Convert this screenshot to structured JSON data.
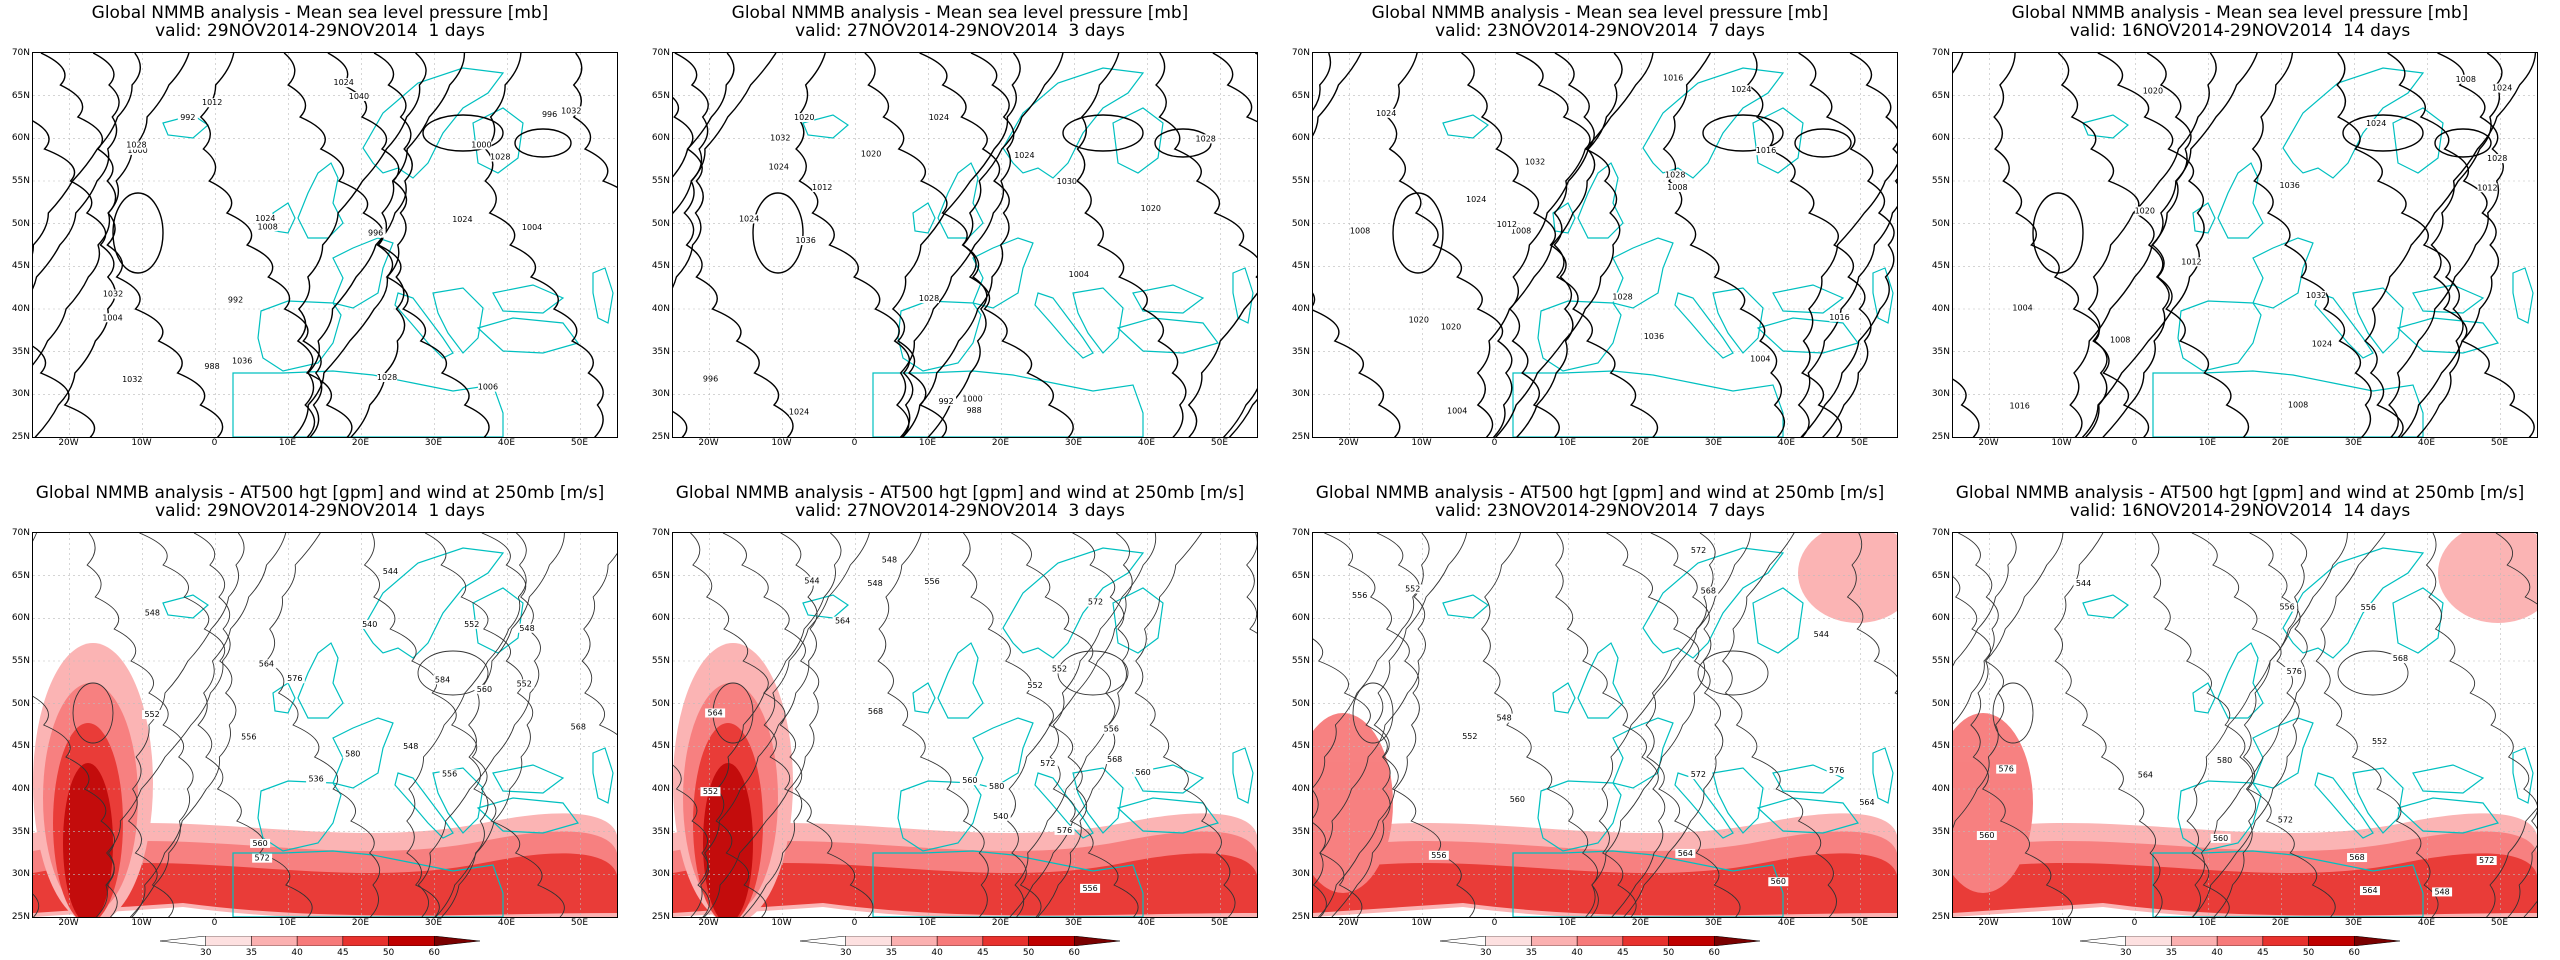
{
  "panels": [
    {
      "title": "Global NMMB analysis - Mean sea level pressure [mb]",
      "valid": "valid: 29NOV2014-29NOV2014  1 days",
      "kind": "mslp",
      "isolines": [
        "992",
        "1004",
        "1008",
        "1006",
        "1004",
        "1000",
        "996",
        "988",
        "992",
        "996",
        "1000",
        "1012",
        "1028",
        "1032",
        "1036",
        "1040",
        "1032",
        "1028",
        "1024",
        "1028",
        "1032",
        "1024",
        "1024"
      ]
    },
    {
      "title": "Global NMMB analysis - Mean sea level pressure [mb]",
      "valid": "valid: 27NOV2014-29NOV2014  3 days",
      "kind": "mslp",
      "isolines": [
        "988",
        "992",
        "996",
        "1000",
        "1004",
        "1012",
        "1024",
        "1024",
        "1028",
        "1032",
        "1036",
        "1028",
        "1024",
        "1024",
        "1024",
        "1020",
        "1020",
        "1020",
        "1030"
      ]
    },
    {
      "title": "Global NMMB analysis - Mean sea level pressure [mb]",
      "valid": "valid: 23NOV2014-29NOV2014  7 days",
      "kind": "mslp",
      "isolines": [
        "1004",
        "1008",
        "1008",
        "1004",
        "1008",
        "1012",
        "1016",
        "1024",
        "1028",
        "1032",
        "1036",
        "1028",
        "1024",
        "1020",
        "1016",
        "1020",
        "1024",
        "1016"
      ]
    },
    {
      "title": "Global NMMB analysis - Mean sea level pressure [mb]",
      "valid": "valid: 16NOV2014-29NOV2014  14 days",
      "kind": "mslp",
      "isolines": [
        "1004",
        "1008",
        "1008",
        "1008",
        "1012",
        "1012",
        "1024",
        "1028",
        "1032",
        "1036",
        "1024",
        "1020",
        "1016",
        "1020",
        "1024"
      ]
    },
    {
      "title": "Global NMMB analysis - AT500 hgt [gpm] and wind at 250mb [m/s]",
      "valid": "valid: 29NOV2014-29NOV2014  1 days",
      "kind": "z500",
      "isolines": [
        "556",
        "552",
        "548",
        "544",
        "540",
        "536",
        "548",
        "552",
        "556",
        "560",
        "564",
        "568",
        "572",
        "576",
        "580",
        "584",
        "560",
        "552",
        "548"
      ]
    },
    {
      "title": "Global NMMB analysis - AT500 hgt [gpm] and wind at 250mb [m/s]",
      "valid": "valid: 27NOV2014-29NOV2014  3 days",
      "kind": "z500",
      "isolines": [
        "552",
        "556",
        "560",
        "548",
        "544",
        "540",
        "552",
        "556",
        "560",
        "564",
        "568",
        "572",
        "576",
        "580",
        "548",
        "552",
        "556",
        "564",
        "568",
        "572"
      ]
    },
    {
      "title": "Global NMMB analysis - AT500 hgt [gpm] and wind at 250mb [m/s]",
      "valid": "valid: 23NOV2014-29NOV2014  7 days",
      "kind": "z500",
      "isolines": [
        "544",
        "548",
        "552",
        "556",
        "560",
        "564",
        "568",
        "572",
        "576",
        "552",
        "556",
        "560",
        "564",
        "572"
      ]
    },
    {
      "title": "Global NMMB analysis - AT500 hgt [gpm] and wind at 250mb [m/s]",
      "valid": "valid: 16NOV2014-29NOV2014  14 days",
      "kind": "z500",
      "isolines": [
        "544",
        "548",
        "552",
        "556",
        "560",
        "564",
        "568",
        "572",
        "576",
        "580",
        "556",
        "560",
        "564",
        "568",
        "572",
        "576"
      ]
    }
  ],
  "axes": {
    "lat_labels": [
      "70N",
      "65N",
      "60N",
      "55N",
      "50N",
      "45N",
      "40N",
      "35N",
      "30N",
      "25N"
    ],
    "lon_labels": [
      "20W",
      "10W",
      "0",
      "10E",
      "20E",
      "30E",
      "40E",
      "50E"
    ]
  },
  "colorbar": {
    "labels": [
      "30",
      "35",
      "40",
      "45",
      "50",
      "60"
    ],
    "colors": [
      "#ffffff",
      "#fde0e0",
      "#fbb0b0",
      "#f77a7a",
      "#e8322e",
      "#c00000",
      "#7a0000"
    ]
  },
  "colors": {
    "coast": "#00c0c0",
    "contour": "#000000",
    "z500": "#333333",
    "wind": "#e00000"
  }
}
